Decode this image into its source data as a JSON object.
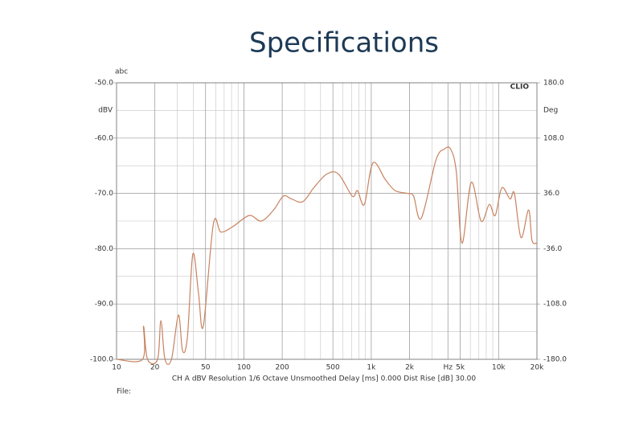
{
  "chart_data": {
    "type": "line",
    "title": "Specifications",
    "top_label": "abc",
    "ylabel": "dBV",
    "y2label": "Deg",
    "brand": "CLIO",
    "footer": "CH A  dBV  Resolution 1/6 Octave  Unsmoothed  Delay [ms] 0.000  Dist Rise [dB] 30.00",
    "file_label": "File:",
    "xscale": "log",
    "grid": true,
    "color": "#c8825f",
    "xlim": [
      10,
      20000
    ],
    "xticks": [
      10,
      20,
      50,
      100,
      200,
      500,
      {
        "value": 1000,
        "label": "1k"
      },
      {
        "value": 2000,
        "label": "2k"
      },
      {
        "value": 4000,
        "label": "Hz"
      },
      {
        "value": 5000,
        "label": "5k"
      },
      {
        "value": 10000,
        "label": "10k"
      },
      {
        "value": 20000,
        "label": "20k"
      }
    ],
    "ylim": [
      -100,
      -50
    ],
    "yticks": [
      {
        "value": -100,
        "label": "-100.0"
      },
      {
        "value": -90,
        "label": "-90.0"
      },
      {
        "value": -80,
        "label": "-80.0"
      },
      {
        "value": -70,
        "label": "-70.0"
      },
      {
        "value": -60,
        "label": "-60.0"
      },
      {
        "value": -50,
        "label": "-50.0"
      }
    ],
    "y2lim": [
      -180,
      180
    ],
    "y2ticks": [
      {
        "value": -180,
        "label": "-180.0"
      },
      {
        "value": -108,
        "label": "-108.0"
      },
      {
        "value": -36,
        "label": "-36.0"
      },
      {
        "value": 36,
        "label": "36.0"
      },
      {
        "value": 108,
        "label": "108.0"
      },
      {
        "value": 180,
        "label": "180.0"
      }
    ],
    "x": [
      10,
      16,
      16.3,
      17.5,
      21,
      22.3,
      24,
      27,
      30.6,
      33,
      36,
      39.7,
      44,
      48,
      57.6,
      66,
      82,
      110,
      137,
      171,
      204,
      236,
      290,
      353,
      448,
      553,
      710,
      780,
      883,
      1030,
      1290,
      1540,
      1930,
      2150,
      2470,
      3220,
      3740,
      4200,
      4650,
      5160,
      6100,
      7290,
      8450,
      9400,
      10600,
      12300,
      13300,
      15000,
      17200,
      18300,
      20000
    ],
    "values": [
      -100,
      -100,
      -94,
      -100,
      -100,
      -93,
      -100,
      -100,
      -92,
      -98.5,
      -96,
      -81,
      -88,
      -94,
      -75.5,
      -77,
      -76,
      -74,
      -75,
      -73,
      -70.5,
      -71,
      -71.5,
      -69,
      -66.5,
      -66.5,
      -70.5,
      -69.5,
      -72,
      -64.5,
      -67.5,
      -69.5,
      -70,
      -70.5,
      -74.5,
      -64,
      -62,
      -62,
      -66,
      -79,
      -68,
      -75,
      -72,
      -74,
      -69,
      -71,
      -70,
      -78,
      -73,
      -78.5,
      -79
    ]
  }
}
